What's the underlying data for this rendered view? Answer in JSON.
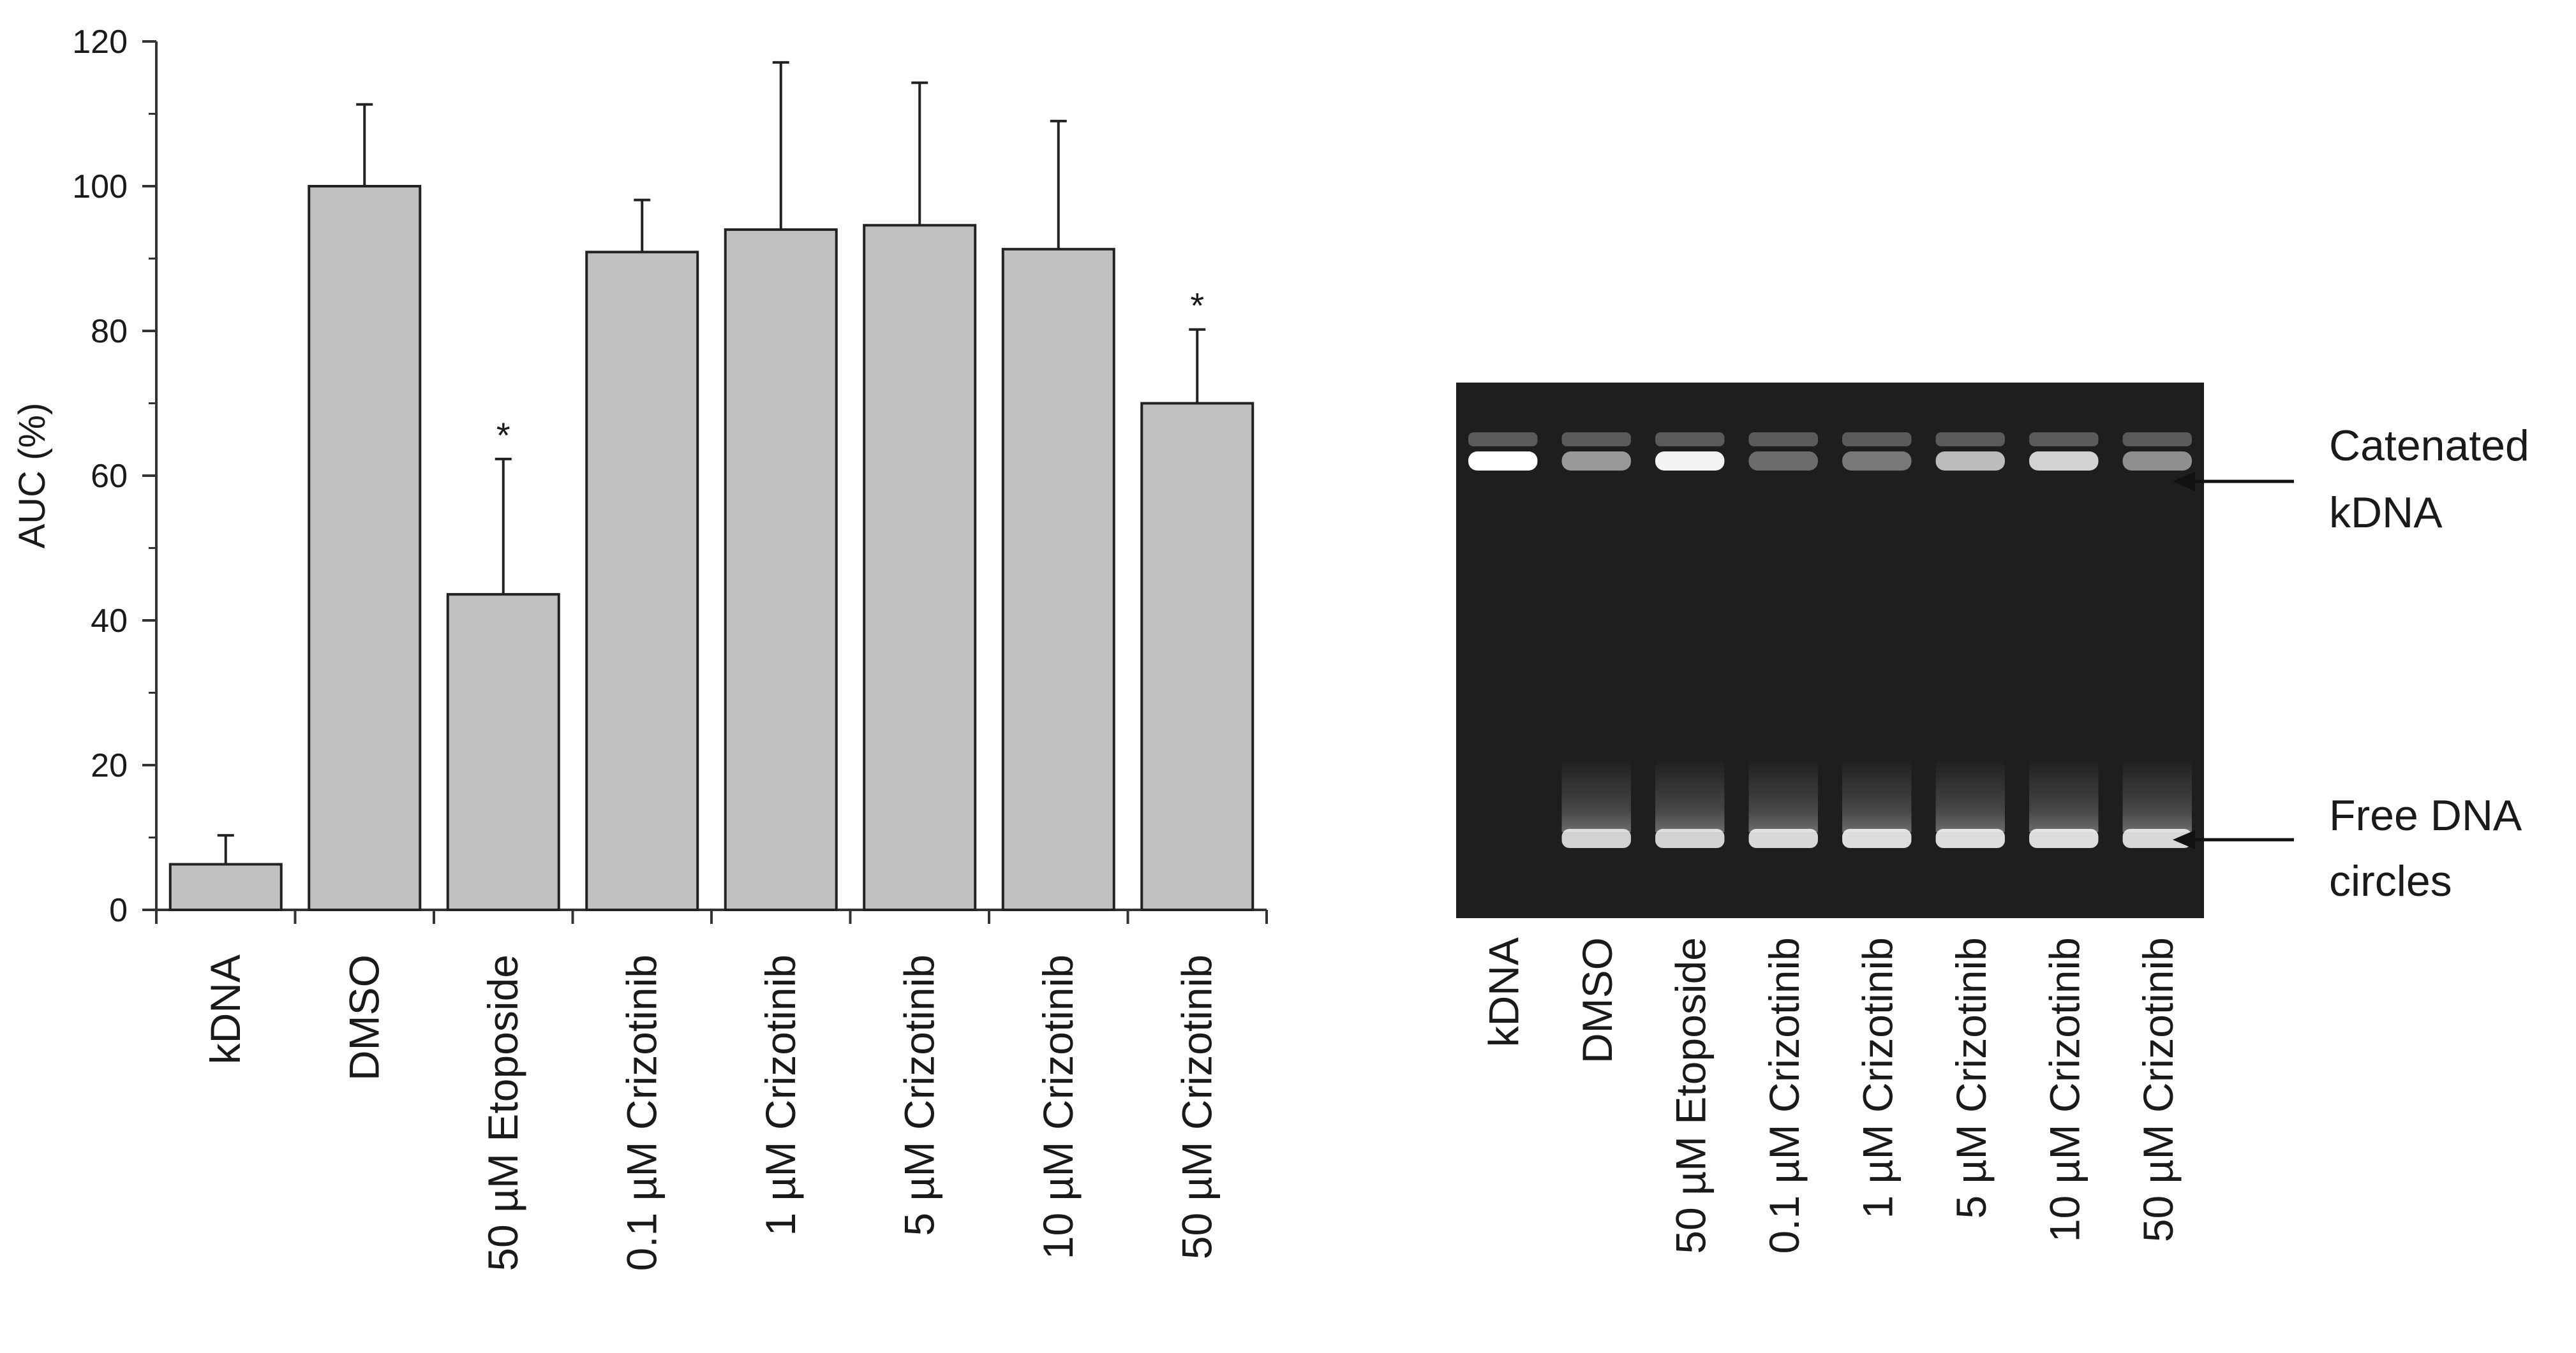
{
  "chart_data": {
    "type": "bar",
    "categories": [
      "kDNA",
      "DMSO",
      "50 µM Etoposide",
      "0.1 µM Crizotinib",
      "1 µM Crizotinib",
      "5 µM Crizotinib",
      "10 µM Crizotinib",
      "50 µM Crizotinib"
    ],
    "values": [
      6.3,
      100,
      43.6,
      90.9,
      94,
      94.6,
      91.3,
      70
    ],
    "error_upper": [
      10.3,
      111.3,
      62.3,
      98.1,
      117.1,
      114.3,
      109,
      80.2
    ],
    "significance": [
      "",
      "",
      "*",
      "",
      "",
      "",
      "",
      "*"
    ],
    "ylabel": "AUC (%)",
    "ylim": [
      0,
      120
    ],
    "yticks": [
      0,
      20,
      40,
      60,
      80,
      100,
      120
    ],
    "grid": false,
    "bar_color": "#c0c0c0"
  },
  "gel": {
    "lanes": [
      "kDNA",
      "DMSO",
      "50 µM Etoposide",
      "0.1 µM Crizotinib",
      "1 µM Crizotinib",
      "5 µM Crizotinib",
      "10 µM Crizotinib",
      "50 µM Crizotinib"
    ],
    "catenated_band_intensity": [
      1.0,
      0.55,
      0.95,
      0.35,
      0.4,
      0.7,
      0.8,
      0.5
    ],
    "free_band_intensity": [
      0.0,
      0.85,
      0.85,
      0.88,
      0.9,
      0.9,
      0.9,
      0.88
    ],
    "annotations": {
      "catenated": [
        "Catenated",
        "kDNA"
      ],
      "free": [
        "Free DNA",
        "circles"
      ]
    },
    "background": "#1e1e1e"
  }
}
